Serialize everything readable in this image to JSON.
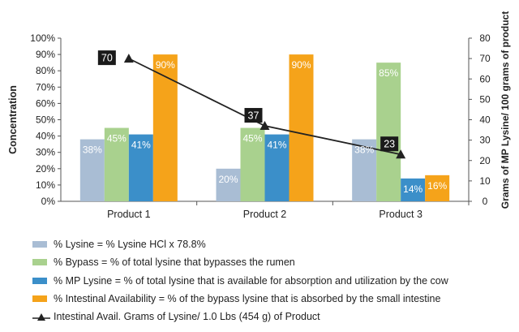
{
  "chart_data": {
    "type": "bar",
    "categories": [
      "Product 1",
      "Product 2",
      "Product 3"
    ],
    "series": [
      {
        "name": "% Lysine = % Lysine HCl x 78.8%",
        "values": [
          38,
          20,
          38
        ],
        "color": "#a9bdd4"
      },
      {
        "name": "% Bypass = % of total lysine that bypasses the rumen",
        "values": [
          45,
          45,
          85
        ],
        "color": "#a9d18e"
      },
      {
        "name": "% MP Lysine = % of total lysine that is available for absorption and utilization by the cow",
        "values": [
          41,
          41,
          14
        ],
        "color": "#3b8fc9"
      },
      {
        "name": "% Intestinal Availability = % of the bypass lysine that is absorbed by the small intestine",
        "values": [
          90,
          90,
          16
        ],
        "color": "#f5a31a"
      }
    ],
    "line_series": {
      "name": "Intestinal Avail. Grams of Lysine/ 1.0 Lbs (454 g) of Product",
      "values": [
        70,
        37,
        23
      ],
      "axis": "right",
      "color": "#222222",
      "marker": "triangle"
    },
    "ylabel": "Concentration",
    "y2label": "Grams of MP Lysine/ 100 grams of product",
    "ylim": [
      0,
      100
    ],
    "y2lim": [
      0,
      80
    ],
    "y_ticks": [
      "0%",
      "10%",
      "20%",
      "30%",
      "40%",
      "50%",
      "60%",
      "70%",
      "80%",
      "90%",
      "100%"
    ],
    "y2_ticks": [
      "0",
      "10",
      "20",
      "30",
      "40",
      "50",
      "60",
      "70",
      "80"
    ],
    "bar_labels": [
      [
        "38%",
        "20%",
        "38%"
      ],
      [
        "45%",
        "45%",
        "85%"
      ],
      [
        "41%",
        "41%",
        "14%"
      ],
      [
        "90%",
        "90%",
        "16%"
      ]
    ],
    "line_labels": [
      "70",
      "37",
      "23"
    ],
    "grid": false,
    "legend_position": "bottom"
  }
}
